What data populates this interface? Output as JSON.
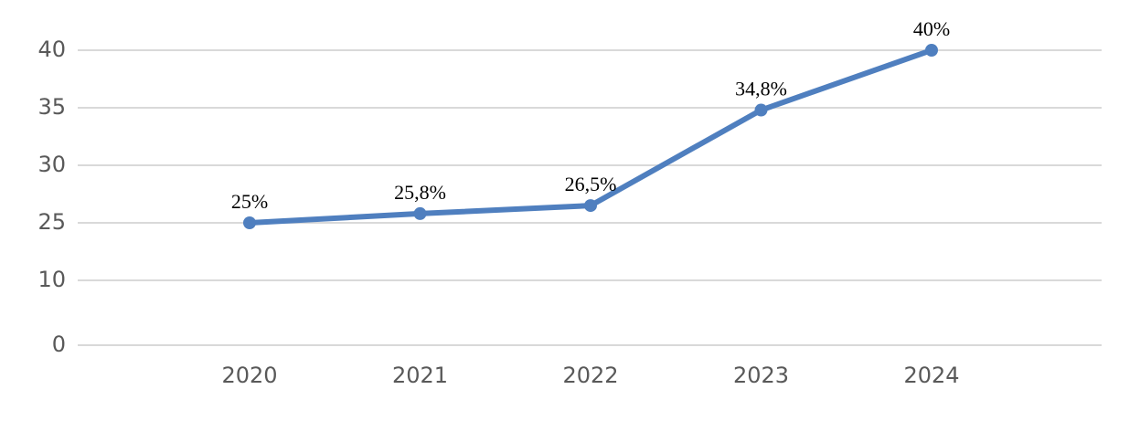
{
  "chart_data": {
    "type": "line",
    "categories": [
      "2020",
      "2021",
      "2022",
      "2023",
      "2024"
    ],
    "series": [
      {
        "color": "#4f7fbf",
        "values": [
          25,
          25.8,
          26.5,
          34.8,
          40
        ],
        "value_labels": [
          "25%",
          "25,8%",
          "26,5%",
          "34,8%",
          "40%"
        ]
      }
    ],
    "ylim": [
      0,
      40
    ],
    "yticks": [
      0,
      10,
      25,
      30,
      35,
      40
    ],
    "grid": true
  }
}
